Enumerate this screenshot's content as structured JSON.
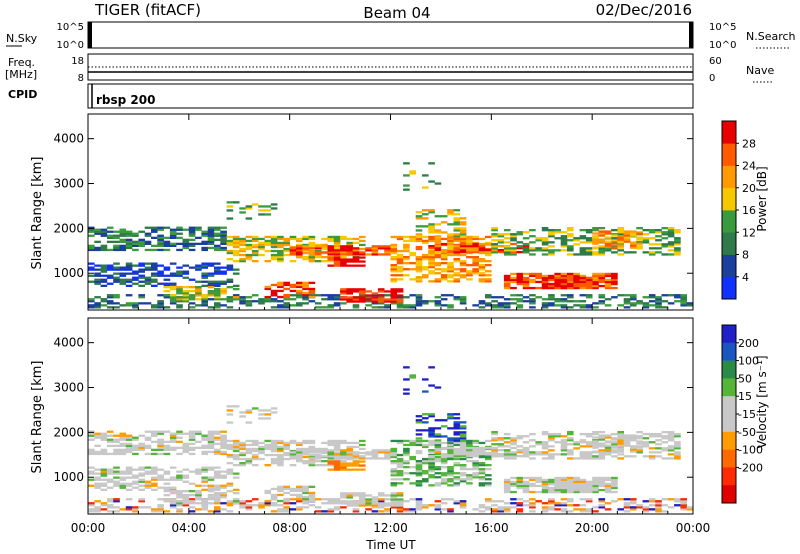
{
  "header": {
    "radar": "TIGER (fitACF)",
    "beam": "Beam 04",
    "date": "02/Dec/2016"
  },
  "sky_panel": {
    "left_label": "N.Sky",
    "right_label": "N.Search",
    "left_ticks": [
      "10^5",
      "10^0"
    ],
    "right_ticks": [
      "10^5",
      "10^0"
    ]
  },
  "freq_panel": {
    "left_label_1": "Freq.",
    "left_label_2": "[MHz]",
    "right_label": "Nave",
    "cpid_label": "CPID",
    "left_ticks": [
      "18",
      "8"
    ],
    "right_ticks": [
      "60",
      "0"
    ]
  },
  "cpid_panel": {
    "name": "rbsp 200"
  },
  "colors": {
    "power_scale": [
      "#1030ff",
      "#1a3f9e",
      "#2e7a48",
      "#3a9a3e",
      "#f6c800",
      "#ff9a00",
      "#ff5a00",
      "#e80000"
    ],
    "velocity_scale": [
      "#2020c8",
      "#1a55c0",
      "#2a8a4a",
      "#55b43a",
      "#c8c8c8",
      "#c8c8c8",
      "#ff9c00",
      "#ff6a00",
      "#ff2a00",
      "#e00000"
    ]
  },
  "chart_data": [
    {
      "type": "heatmap",
      "panel": "power",
      "ylabel": "Slant Range [km]",
      "y_ticks": [
        "1000",
        "2000",
        "3000",
        "4000"
      ],
      "x_ticks": [
        "00:00",
        "04:00",
        "08:00",
        "12:00",
        "16:00",
        "20:00",
        "00:00"
      ],
      "xlim_hours": [
        0,
        24
      ],
      "ylim_km": [
        180,
        4550
      ],
      "colorbar": {
        "label": "Power [dB]",
        "ticks": [
          "4",
          "8",
          "12",
          "16",
          "20",
          "24",
          "28"
        ],
        "range": [
          0,
          30
        ]
      },
      "note": "range-time scatter of backscatter power"
    },
    {
      "type": "heatmap",
      "panel": "velocity",
      "ylabel": "Slant Range [km]",
      "xlabel": "Time UT",
      "y_ticks": [
        "1000",
        "2000",
        "3000",
        "4000"
      ],
      "x_ticks": [
        "00:00",
        "04:00",
        "08:00",
        "12:00",
        "16:00",
        "20:00",
        "00:00"
      ],
      "xlim_hours": [
        0,
        24
      ],
      "ylim_km": [
        180,
        4550
      ],
      "colorbar": {
        "label": "Velocity [m s⁻¹]",
        "ticks": [
          "200",
          "100",
          "50",
          "15",
          "-15",
          "-50",
          "-100",
          "-200"
        ],
        "range": [
          -250,
          250
        ]
      },
      "note": "range-time scatter of line-of-sight velocity"
    }
  ]
}
